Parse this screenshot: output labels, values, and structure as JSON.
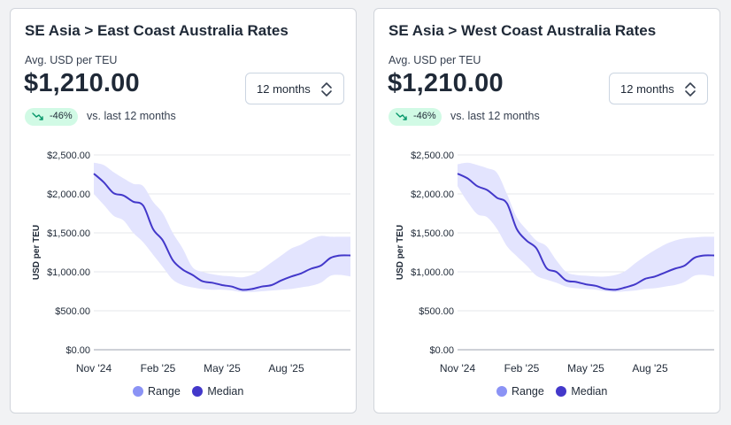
{
  "cards": [
    {
      "title": "SE Asia > East Coast Australia Rates",
      "subtitle": "Avg. USD per TEU",
      "price": "$1,210.00",
      "period_select": "12 months",
      "change_badge": "-46%",
      "comparison": "vs. last 12 months",
      "chart_data": {
        "type": "area",
        "title": "",
        "xlabel": "",
        "ylabel": "USD per TEU",
        "ylim": [
          0,
          2500
        ],
        "yticks": [
          "$2,500.00",
          "$2,000.00",
          "$1,500.00",
          "$1,000.00",
          "$500.00",
          "$0.00"
        ],
        "xticks": [
          "Nov '24",
          "Feb '25",
          "May '25",
          "Aug '25"
        ],
        "legend": [
          "Range",
          "Median"
        ],
        "weeks": [
          0,
          2,
          4,
          6,
          8,
          10,
          12,
          14,
          16,
          18,
          20,
          22,
          24,
          26,
          28,
          30,
          32,
          34,
          36,
          38,
          40,
          42,
          44,
          46,
          48,
          50,
          52
        ],
        "series": [
          {
            "name": "Median",
            "values": [
              2260,
              2150,
              2010,
              1980,
              1900,
              1850,
              1550,
              1400,
              1150,
              1030,
              960,
              880,
              860,
              830,
              810,
              770,
              780,
              810,
              830,
              890,
              940,
              980,
              1040,
              1080,
              1180,
              1210,
              1210
            ]
          },
          {
            "name": "Range high",
            "values": [
              2400,
              2370,
              2280,
              2200,
              2130,
              2100,
              1900,
              1750,
              1500,
              1300,
              1060,
              1000,
              970,
              950,
              940,
              930,
              960,
              1030,
              1120,
              1210,
              1300,
              1350,
              1420,
              1460,
              1450,
              1450,
              1450
            ]
          },
          {
            "name": "Range low",
            "values": [
              2000,
              1860,
              1720,
              1660,
              1500,
              1380,
              1220,
              1060,
              900,
              830,
              800,
              780,
              770,
              770,
              760,
              740,
              740,
              750,
              760,
              770,
              780,
              800,
              820,
              860,
              950,
              960,
              940
            ]
          }
        ]
      }
    },
    {
      "title": "SE Asia > West Coast Australia Rates",
      "subtitle": "Avg. USD per TEU",
      "price": "$1,210.00",
      "period_select": "12 months",
      "change_badge": "-46%",
      "comparison": "vs. last 12 months",
      "chart_data": {
        "type": "area",
        "title": "",
        "xlabel": "",
        "ylabel": "USD per TEU",
        "ylim": [
          0,
          2500
        ],
        "yticks": [
          "$2,500.00",
          "$2,000.00",
          "$1,500.00",
          "$1,000.00",
          "$500.00",
          "$0.00"
        ],
        "xticks": [
          "Nov '24",
          "Feb '25",
          "May '25",
          "Aug '25"
        ],
        "legend": [
          "Range",
          "Median"
        ],
        "weeks": [
          0,
          2,
          4,
          6,
          8,
          10,
          12,
          14,
          16,
          18,
          20,
          22,
          24,
          26,
          28,
          30,
          32,
          34,
          36,
          38,
          40,
          42,
          44,
          46,
          48,
          50,
          52
        ],
        "series": [
          {
            "name": "Median",
            "values": [
              2260,
              2200,
              2100,
              2050,
              1950,
              1880,
              1550,
              1400,
              1300,
              1050,
              1000,
              890,
              870,
              840,
              820,
              780,
              770,
              800,
              840,
              910,
              940,
              990,
              1040,
              1080,
              1180,
              1210,
              1210
            ]
          },
          {
            "name": "Range high",
            "values": [
              2380,
              2400,
              2370,
              2330,
              2270,
              2000,
              1700,
              1540,
              1400,
              1330,
              1150,
              1000,
              960,
              950,
              940,
              940,
              960,
              1010,
              1110,
              1200,
              1280,
              1350,
              1400,
              1430,
              1440,
              1450,
              1450
            ]
          },
          {
            "name": "Range low",
            "values": [
              2100,
              1900,
              1740,
              1700,
              1550,
              1330,
              1200,
              1080,
              950,
              900,
              860,
              810,
              790,
              780,
              770,
              750,
              740,
              750,
              760,
              780,
              790,
              810,
              830,
              870,
              950,
              960,
              940
            ]
          }
        ]
      }
    }
  ],
  "colors": {
    "range": "#8b93f5",
    "range_fill": "#e3e4fe",
    "median": "#4338ca",
    "badge_bg": "#d1fae5",
    "badge_icon": "#059669"
  },
  "icons": {
    "select": "chevron-up-down-icon",
    "badge": "trend-down-icon"
  }
}
